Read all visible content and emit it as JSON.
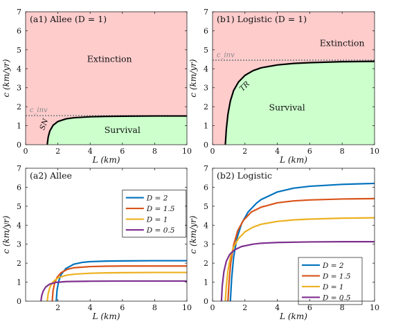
{
  "chart_data": [
    {
      "panel": "a1",
      "type": "area",
      "title": "(a1) Allee (D = 1)",
      "xlabel": "L (km)",
      "ylabel": "c (km/yr)",
      "xlim": [
        0,
        10
      ],
      "ylim": [
        0,
        7
      ],
      "xticks": [
        0,
        2,
        4,
        6,
        8,
        10
      ],
      "yticks": [
        0,
        1,
        2,
        3,
        4,
        5,
        6,
        7
      ],
      "regions": [
        {
          "label": "Extinction",
          "color": "#ffcccc"
        },
        {
          "label": "Survival",
          "color": "#ccffcc"
        }
      ],
      "boundary": {
        "label": "SN",
        "color": "#000000",
        "x": [
          1.34,
          1.4,
          1.5,
          1.7,
          2.0,
          2.5,
          3.0,
          4.0,
          5.0,
          6.0,
          8.0,
          10.0
        ],
        "y": [
          0.0,
          0.4,
          0.72,
          1.02,
          1.22,
          1.36,
          1.42,
          1.47,
          1.49,
          1.5,
          1.51,
          1.51
        ]
      },
      "c_inv": {
        "label": "c_inv",
        "y": 1.53,
        "color": "#888888"
      }
    },
    {
      "panel": "b1",
      "type": "area",
      "title": "(b1) Logistic (D = 1)",
      "xlabel": "L (km)",
      "ylabel": "c (km/yr)",
      "xlim": [
        0,
        10
      ],
      "ylim": [
        0,
        7
      ],
      "xticks": [
        0,
        2,
        4,
        6,
        8,
        10
      ],
      "yticks": [
        0,
        1,
        2,
        3,
        4,
        5,
        6,
        7
      ],
      "regions": [
        {
          "label": "Extinction",
          "color": "#ffcccc"
        },
        {
          "label": "Survival",
          "color": "#ccffcc"
        }
      ],
      "boundary": {
        "label": "TR",
        "color": "#000000",
        "x": [
          0.79,
          0.85,
          0.95,
          1.1,
          1.3,
          1.6,
          2.0,
          2.5,
          3.0,
          4.0,
          5.0,
          6.0,
          8.0,
          10.0
        ],
        "y": [
          0.0,
          0.8,
          1.6,
          2.3,
          2.85,
          3.3,
          3.65,
          3.9,
          4.05,
          4.2,
          4.28,
          4.32,
          4.37,
          4.39
        ]
      },
      "c_inv": {
        "label": "c_inv",
        "y": 4.45,
        "color": "#888888"
      }
    },
    {
      "panel": "a2",
      "type": "line",
      "title": "(a2) Allee",
      "xlabel": "L (km)",
      "ylabel": "c (km/yr)",
      "xlim": [
        0,
        10
      ],
      "ylim": [
        0,
        7
      ],
      "xticks": [
        2,
        4,
        6,
        8,
        10
      ],
      "yticks": [
        0,
        1,
        2,
        3,
        4,
        5,
        6,
        7
      ],
      "legend_position": "top-right",
      "series": [
        {
          "name": "D = 2",
          "color": "#0072BD",
          "x": [
            1.9,
            1.95,
            2.05,
            2.2,
            2.5,
            3.0,
            3.5,
            4.0,
            5.0,
            6.0,
            8.0,
            10.0
          ],
          "y": [
            0.0,
            0.6,
            1.05,
            1.4,
            1.72,
            1.95,
            2.04,
            2.08,
            2.11,
            2.12,
            2.13,
            2.13
          ]
        },
        {
          "name": "D = 1.5",
          "color": "#D95319",
          "x": [
            1.65,
            1.7,
            1.8,
            1.95,
            2.2,
            2.6,
            3.0,
            4.0,
            5.0,
            6.0,
            8.0,
            10.0
          ],
          "y": [
            0.0,
            0.55,
            0.95,
            1.25,
            1.5,
            1.68,
            1.76,
            1.82,
            1.84,
            1.85,
            1.85,
            1.85
          ]
        },
        {
          "name": "D = 1",
          "color": "#EDB120",
          "x": [
            1.34,
            1.4,
            1.5,
            1.7,
            2.0,
            2.5,
            3.0,
            4.0,
            5.0,
            6.0,
            8.0,
            10.0
          ],
          "y": [
            0.0,
            0.4,
            0.72,
            1.02,
            1.22,
            1.36,
            1.42,
            1.47,
            1.49,
            1.5,
            1.51,
            1.51
          ]
        },
        {
          "name": "D = 0.5",
          "color": "#7E2F8E",
          "x": [
            0.95,
            1.0,
            1.1,
            1.25,
            1.5,
            1.9,
            2.5,
            3.0,
            4.0,
            6.0,
            8.0,
            10.0
          ],
          "y": [
            0.0,
            0.3,
            0.55,
            0.75,
            0.9,
            0.99,
            1.03,
            1.04,
            1.05,
            1.06,
            1.06,
            1.06
          ]
        }
      ]
    },
    {
      "panel": "b2",
      "type": "line",
      "title": "(b2) Logistic",
      "xlabel": "L (km)",
      "ylabel": "c (km/yr)",
      "xlim": [
        0,
        10
      ],
      "ylim": [
        0,
        7
      ],
      "xticks": [
        0,
        2,
        4,
        6,
        8,
        10
      ],
      "yticks": [
        0,
        1,
        2,
        3,
        4,
        5,
        6,
        7
      ],
      "legend_position": "bottom-right",
      "series": [
        {
          "name": "D = 2",
          "color": "#0072BD",
          "x": [
            1.1,
            1.18,
            1.3,
            1.5,
            1.8,
            2.2,
            2.7,
            3.0,
            4.0,
            5.0,
            6.0,
            8.0,
            10.0
          ],
          "y": [
            0.0,
            1.2,
            2.3,
            3.3,
            4.1,
            4.7,
            5.15,
            5.35,
            5.75,
            5.95,
            6.05,
            6.15,
            6.2
          ]
        },
        {
          "name": "D = 1.5",
          "color": "#D95319",
          "x": [
            0.95,
            1.02,
            1.12,
            1.3,
            1.55,
            1.9,
            2.4,
            3.0,
            4.0,
            5.0,
            6.0,
            8.0,
            10.0
          ],
          "y": [
            0.0,
            1.0,
            2.0,
            2.95,
            3.7,
            4.25,
            4.7,
            4.95,
            5.18,
            5.28,
            5.33,
            5.38,
            5.4
          ]
        },
        {
          "name": "D = 1",
          "color": "#EDB120",
          "x": [
            0.79,
            0.85,
            0.95,
            1.1,
            1.3,
            1.6,
            2.0,
            2.5,
            3.0,
            4.0,
            5.0,
            6.0,
            8.0,
            10.0
          ],
          "y": [
            0.0,
            0.8,
            1.6,
            2.3,
            2.85,
            3.3,
            3.65,
            3.9,
            4.05,
            4.2,
            4.28,
            4.32,
            4.37,
            4.39
          ]
        },
        {
          "name": "D = 0.5",
          "color": "#7E2F8E",
          "x": [
            0.55,
            0.6,
            0.7,
            0.85,
            1.05,
            1.35,
            1.8,
            2.5,
            3.0,
            4.0,
            6.0,
            8.0,
            10.0
          ],
          "y": [
            0.0,
            0.8,
            1.55,
            2.1,
            2.45,
            2.7,
            2.88,
            3.0,
            3.05,
            3.09,
            3.12,
            3.13,
            3.13
          ]
        }
      ]
    }
  ]
}
